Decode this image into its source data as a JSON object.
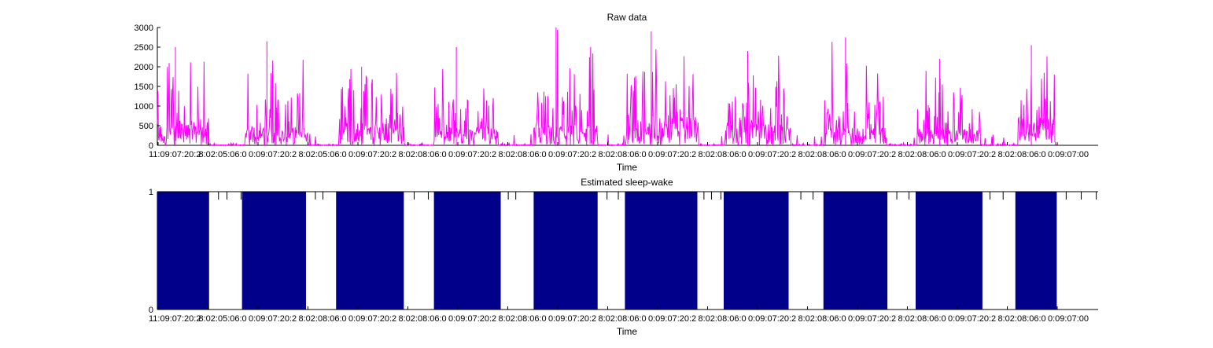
{
  "chart_data": [
    {
      "type": "line",
      "title": "Raw data",
      "xlabel": "Time",
      "ylabel": "",
      "ylim": [
        0,
        3000
      ],
      "yticks": [
        0,
        500,
        1000,
        1500,
        2000,
        2500,
        3000
      ],
      "xtick_labels": [
        "11:09:07:20:2",
        "8:02:05:06:0",
        "0:09:07:20:2",
        "8:02:05:06:0",
        "0:09:07:20:2",
        "8:02:08:06:0",
        "0:09:07:20:2",
        "8:02:08:06:0",
        "0:09:07:20:2",
        "8:02:08:06:0",
        "0:09:07:20:2",
        "8:02:08:06:0",
        "0:09:07:20:2",
        "8:02:08:06:0",
        "0:09:07:20:2",
        "8:02:08:06:0",
        "0:09:07:20:2",
        "8:02:08:06:0",
        "0:09:07:00"
      ],
      "line_color": "#ff00ff",
      "series": [
        {
          "activity_bursts": [
            {
              "start": 0.0,
              "end": 0.055,
              "peak": 2500,
              "mean": 500
            },
            {
              "start": 0.093,
              "end": 0.16,
              "peak": 2650,
              "mean": 450
            },
            {
              "start": 0.193,
              "end": 0.262,
              "peak": 2000,
              "mean": 520
            },
            {
              "start": 0.294,
              "end": 0.362,
              "peak": 2500,
              "mean": 420
            },
            {
              "start": 0.4,
              "end": 0.468,
              "peak": 3000,
              "mean": 480
            },
            {
              "start": 0.498,
              "end": 0.575,
              "peak": 2900,
              "mean": 650
            },
            {
              "start": 0.603,
              "end": 0.673,
              "peak": 2400,
              "mean": 500
            },
            {
              "start": 0.708,
              "end": 0.775,
              "peak": 2750,
              "mean": 420
            },
            {
              "start": 0.808,
              "end": 0.875,
              "peak": 2200,
              "mean": 380
            },
            {
              "start": 0.915,
              "end": 0.955,
              "peak": 2550,
              "mean": 650
            }
          ]
        }
      ]
    },
    {
      "type": "area",
      "title": "Estimated sleep-wake",
      "xlabel": "Time",
      "ylabel": "",
      "ylim": [
        0,
        1
      ],
      "yticks": [
        0,
        1
      ],
      "fill_color": "#00008b",
      "xtick_labels": [
        "11:09:07:20:2",
        "8:02:05:06:0",
        "0:09:07:20:2",
        "8:02:08:06:0",
        "0:09:07:20:2",
        "8:02:08:06:0",
        "0:09:07:20:2",
        "8:02:08:06:0",
        "0:09:07:20:2",
        "8:02:08:06:0",
        "0:09:07:20:2",
        "8:02:08:06:0",
        "0:09:07:20:2",
        "8:02:08:06:0",
        "0:09:07:20:2",
        "8:02:08:06:0",
        "0:09:07:20:2",
        "8:02:08:06:0",
        "0:09:07:00"
      ],
      "series": [
        {
          "state_one_intervals": [
            [
              0.0,
              0.055
            ],
            [
              0.09,
              0.158
            ],
            [
              0.19,
              0.262
            ],
            [
              0.294,
              0.365
            ],
            [
              0.4,
              0.468
            ],
            [
              0.497,
              0.574
            ],
            [
              0.602,
              0.671
            ],
            [
              0.708,
              0.776
            ],
            [
              0.806,
              0.877
            ],
            [
              0.912,
              0.956
            ]
          ],
          "transition_blips": [
            0.065,
            0.074,
            0.089,
            0.168,
            0.176,
            0.273,
            0.288,
            0.373,
            0.381,
            0.478,
            0.49,
            0.581,
            0.589,
            0.599,
            0.684,
            0.697,
            0.786,
            0.799,
            0.885,
            0.899,
            0.966,
            0.982,
            0.998
          ]
        }
      ]
    }
  ]
}
